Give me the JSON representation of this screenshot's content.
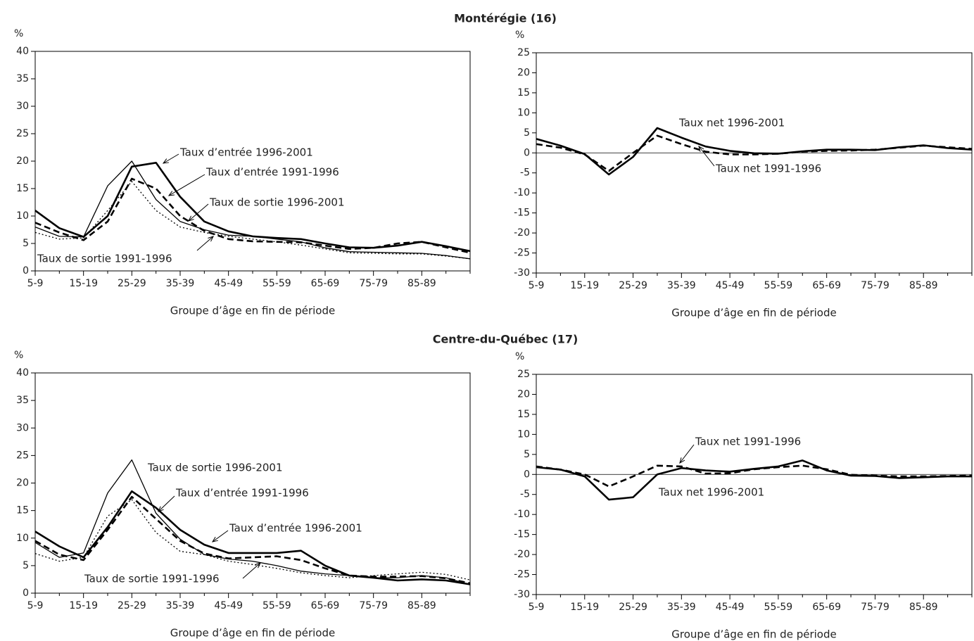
{
  "section_titles": [
    "Montérégie (16)",
    "Centre-du-Québec (17)"
  ],
  "chart_data": [
    {
      "type": "line",
      "ylabel": "%",
      "xlabel": "Groupe d’âge en fin de période",
      "categories": [
        "5-9",
        null,
        "15-19",
        null,
        "25-29",
        null,
        "35-39",
        null,
        "45-49",
        null,
        "55-59",
        null,
        "65-69",
        null,
        "75-79",
        null,
        "85-89",
        null,
        null
      ],
      "ylim": [
        0,
        40
      ],
      "yticks": [
        0,
        5,
        10,
        15,
        20,
        25,
        30,
        35,
        40
      ],
      "frame": true,
      "series": [
        {
          "name": "Taux d’entrée 1996-2001",
          "color": "#000000",
          "dash": "solid",
          "width": "thick",
          "values": [
            11,
            7.8,
            6.2,
            10,
            19,
            19.7,
            13.5,
            9,
            7.2,
            6.3,
            6,
            5.8,
            5,
            4.3,
            4.2,
            4.6,
            5.3,
            4.5,
            3.6
          ]
        },
        {
          "name": "Taux d’entrée 1991-1996",
          "color": "#000000",
          "dash": "dashed",
          "width": "thick",
          "values": [
            8.8,
            7,
            5.6,
            9,
            16.8,
            15,
            10,
            7.3,
            5.8,
            5.4,
            5.3,
            5.2,
            4.6,
            4,
            4.2,
            5,
            5.3,
            4.3,
            3.3
          ]
        },
        {
          "name": "Taux de sortie 1996-2001",
          "color": "#000000",
          "dash": "solid",
          "width": "thin",
          "values": [
            8,
            6.3,
            6.2,
            15.5,
            20,
            13,
            9,
            7.5,
            6.5,
            6.3,
            5.8,
            5.3,
            4.2,
            3.5,
            3.4,
            3.3,
            3.2,
            2.8,
            2.2
          ]
        },
        {
          "name": "Taux de sortie 1991-1996",
          "color": "#000000",
          "dash": "dotted",
          "width": "thin",
          "values": [
            7,
            5.8,
            6,
            11,
            16.3,
            11,
            8,
            7,
            6.3,
            5.8,
            5.3,
            4.7,
            4,
            3.3,
            3.2,
            3.1,
            3.1,
            2.7,
            2.2
          ]
        }
      ]
    },
    {
      "type": "line",
      "ylabel": "%",
      "xlabel": "Groupe d’âge en fin de période",
      "categories": [
        "5-9",
        null,
        "15-19",
        null,
        "25-29",
        null,
        "35-39",
        null,
        "45-49",
        null,
        "55-59",
        null,
        "65-69",
        null,
        "75-79",
        null,
        "85-89",
        null,
        null
      ],
      "ylim": [
        -30,
        25
      ],
      "yticks": [
        -30,
        -25,
        -20,
        -15,
        -10,
        -5,
        0,
        5,
        10,
        15,
        20,
        25
      ],
      "frame": true,
      "zero_line": true,
      "series": [
        {
          "name": "Taux net 1996-2001",
          "color": "#000000",
          "dash": "solid",
          "width": "thick",
          "values": [
            3.5,
            1.8,
            -0.3,
            -5.4,
            -1,
            6.2,
            3.8,
            1.6,
            0.5,
            -0.1,
            -0.2,
            0.4,
            0.8,
            0.8,
            0.7,
            1.4,
            1.9,
            1.2,
            0.8
          ]
        },
        {
          "name": "Taux net 1991-1996",
          "color": "#000000",
          "dash": "dashed",
          "width": "thick",
          "values": [
            2.2,
            1.3,
            -0.4,
            -4.5,
            0,
            4.3,
            2.2,
            0.3,
            -0.4,
            -0.4,
            -0.2,
            0.3,
            0.5,
            0.6,
            0.8,
            1.3,
            1.8,
            1.4,
            1.0
          ]
        }
      ]
    },
    {
      "type": "line",
      "ylabel": "%",
      "xlabel": "Groupe d’âge en fin de période",
      "categories": [
        "5-9",
        null,
        "15-19",
        null,
        "25-29",
        null,
        "35-39",
        null,
        "45-49",
        null,
        "55-59",
        null,
        "65-69",
        null,
        "75-79",
        null,
        "85-89",
        null,
        null
      ],
      "ylim": [
        0,
        40
      ],
      "yticks": [
        0,
        5,
        10,
        15,
        20,
        25,
        30,
        35,
        40
      ],
      "frame": true,
      "series": [
        {
          "name": "Taux d’entrée 1996-2001",
          "color": "#000000",
          "dash": "solid",
          "width": "thick",
          "values": [
            11.2,
            8.5,
            6.5,
            12,
            18.5,
            15.5,
            11.5,
            8.8,
            7.3,
            7.3,
            7.3,
            7.7,
            5,
            3.2,
            2.8,
            2.3,
            2.5,
            2.3,
            1.6
          ]
        },
        {
          "name": "Taux d’entrée 1991-1996",
          "color": "#000000",
          "dash": "dashed",
          "width": "thick",
          "values": [
            9.5,
            7,
            6,
            11.5,
            17.5,
            13.5,
            9.5,
            7.2,
            6.3,
            6.5,
            6.7,
            6.0,
            4.5,
            3.2,
            3,
            3,
            3.1,
            2.7,
            1.8
          ]
        },
        {
          "name": "Taux de sortie 1996-2001",
          "color": "#000000",
          "dash": "solid",
          "width": "thin",
          "values": [
            9.2,
            6.5,
            7.3,
            18.2,
            24.2,
            14.5,
            9.8,
            7.0,
            6.2,
            5.8,
            5.0,
            4.0,
            3.5,
            3.2,
            2.8,
            2.8,
            3.2,
            2.8,
            1.5
          ]
        },
        {
          "name": "Taux de sortie 1991-1996",
          "color": "#000000",
          "dash": "dotted",
          "width": "thin",
          "values": [
            7.2,
            5.8,
            6.5,
            14,
            17,
            11,
            7.6,
            7,
            5.8,
            5.2,
            4.5,
            3.7,
            3.2,
            2.8,
            3.2,
            3.5,
            3.8,
            3.4,
            2.4
          ]
        }
      ]
    },
    {
      "type": "line",
      "ylabel": "%",
      "xlabel": "Groupe d’âge en fin de période",
      "categories": [
        "5-9",
        null,
        "15-19",
        null,
        "25-29",
        null,
        "35-39",
        null,
        "45-49",
        null,
        "55-59",
        null,
        "65-69",
        null,
        "75-79",
        null,
        "85-89",
        null,
        null
      ],
      "ylim": [
        -30,
        25
      ],
      "yticks": [
        -30,
        -25,
        -20,
        -15,
        -10,
        -5,
        0,
        5,
        10,
        15,
        20,
        25
      ],
      "frame": true,
      "zero_line": true,
      "series": [
        {
          "name": "Taux net 1996-2001",
          "color": "#000000",
          "dash": "solid",
          "width": "thick",
          "values": [
            1.8,
            1.2,
            -0.5,
            -6.3,
            -5.7,
            0,
            1.6,
            1.0,
            0.7,
            1.4,
            2,
            3.5,
            1,
            -0.3,
            -0.4,
            -0.9,
            -0.7,
            -0.5,
            -0.5
          ]
        },
        {
          "name": "Taux net 1991-1996",
          "color": "#000000",
          "dash": "dashed",
          "width": "thick",
          "values": [
            2,
            1.2,
            0,
            -3,
            -0.5,
            2.2,
            2,
            0.2,
            0.3,
            1.3,
            1.8,
            2.2,
            1.3,
            -0.1,
            -0.3,
            -0.5,
            -0.5,
            -0.4,
            -0.3
          ]
        }
      ]
    }
  ]
}
